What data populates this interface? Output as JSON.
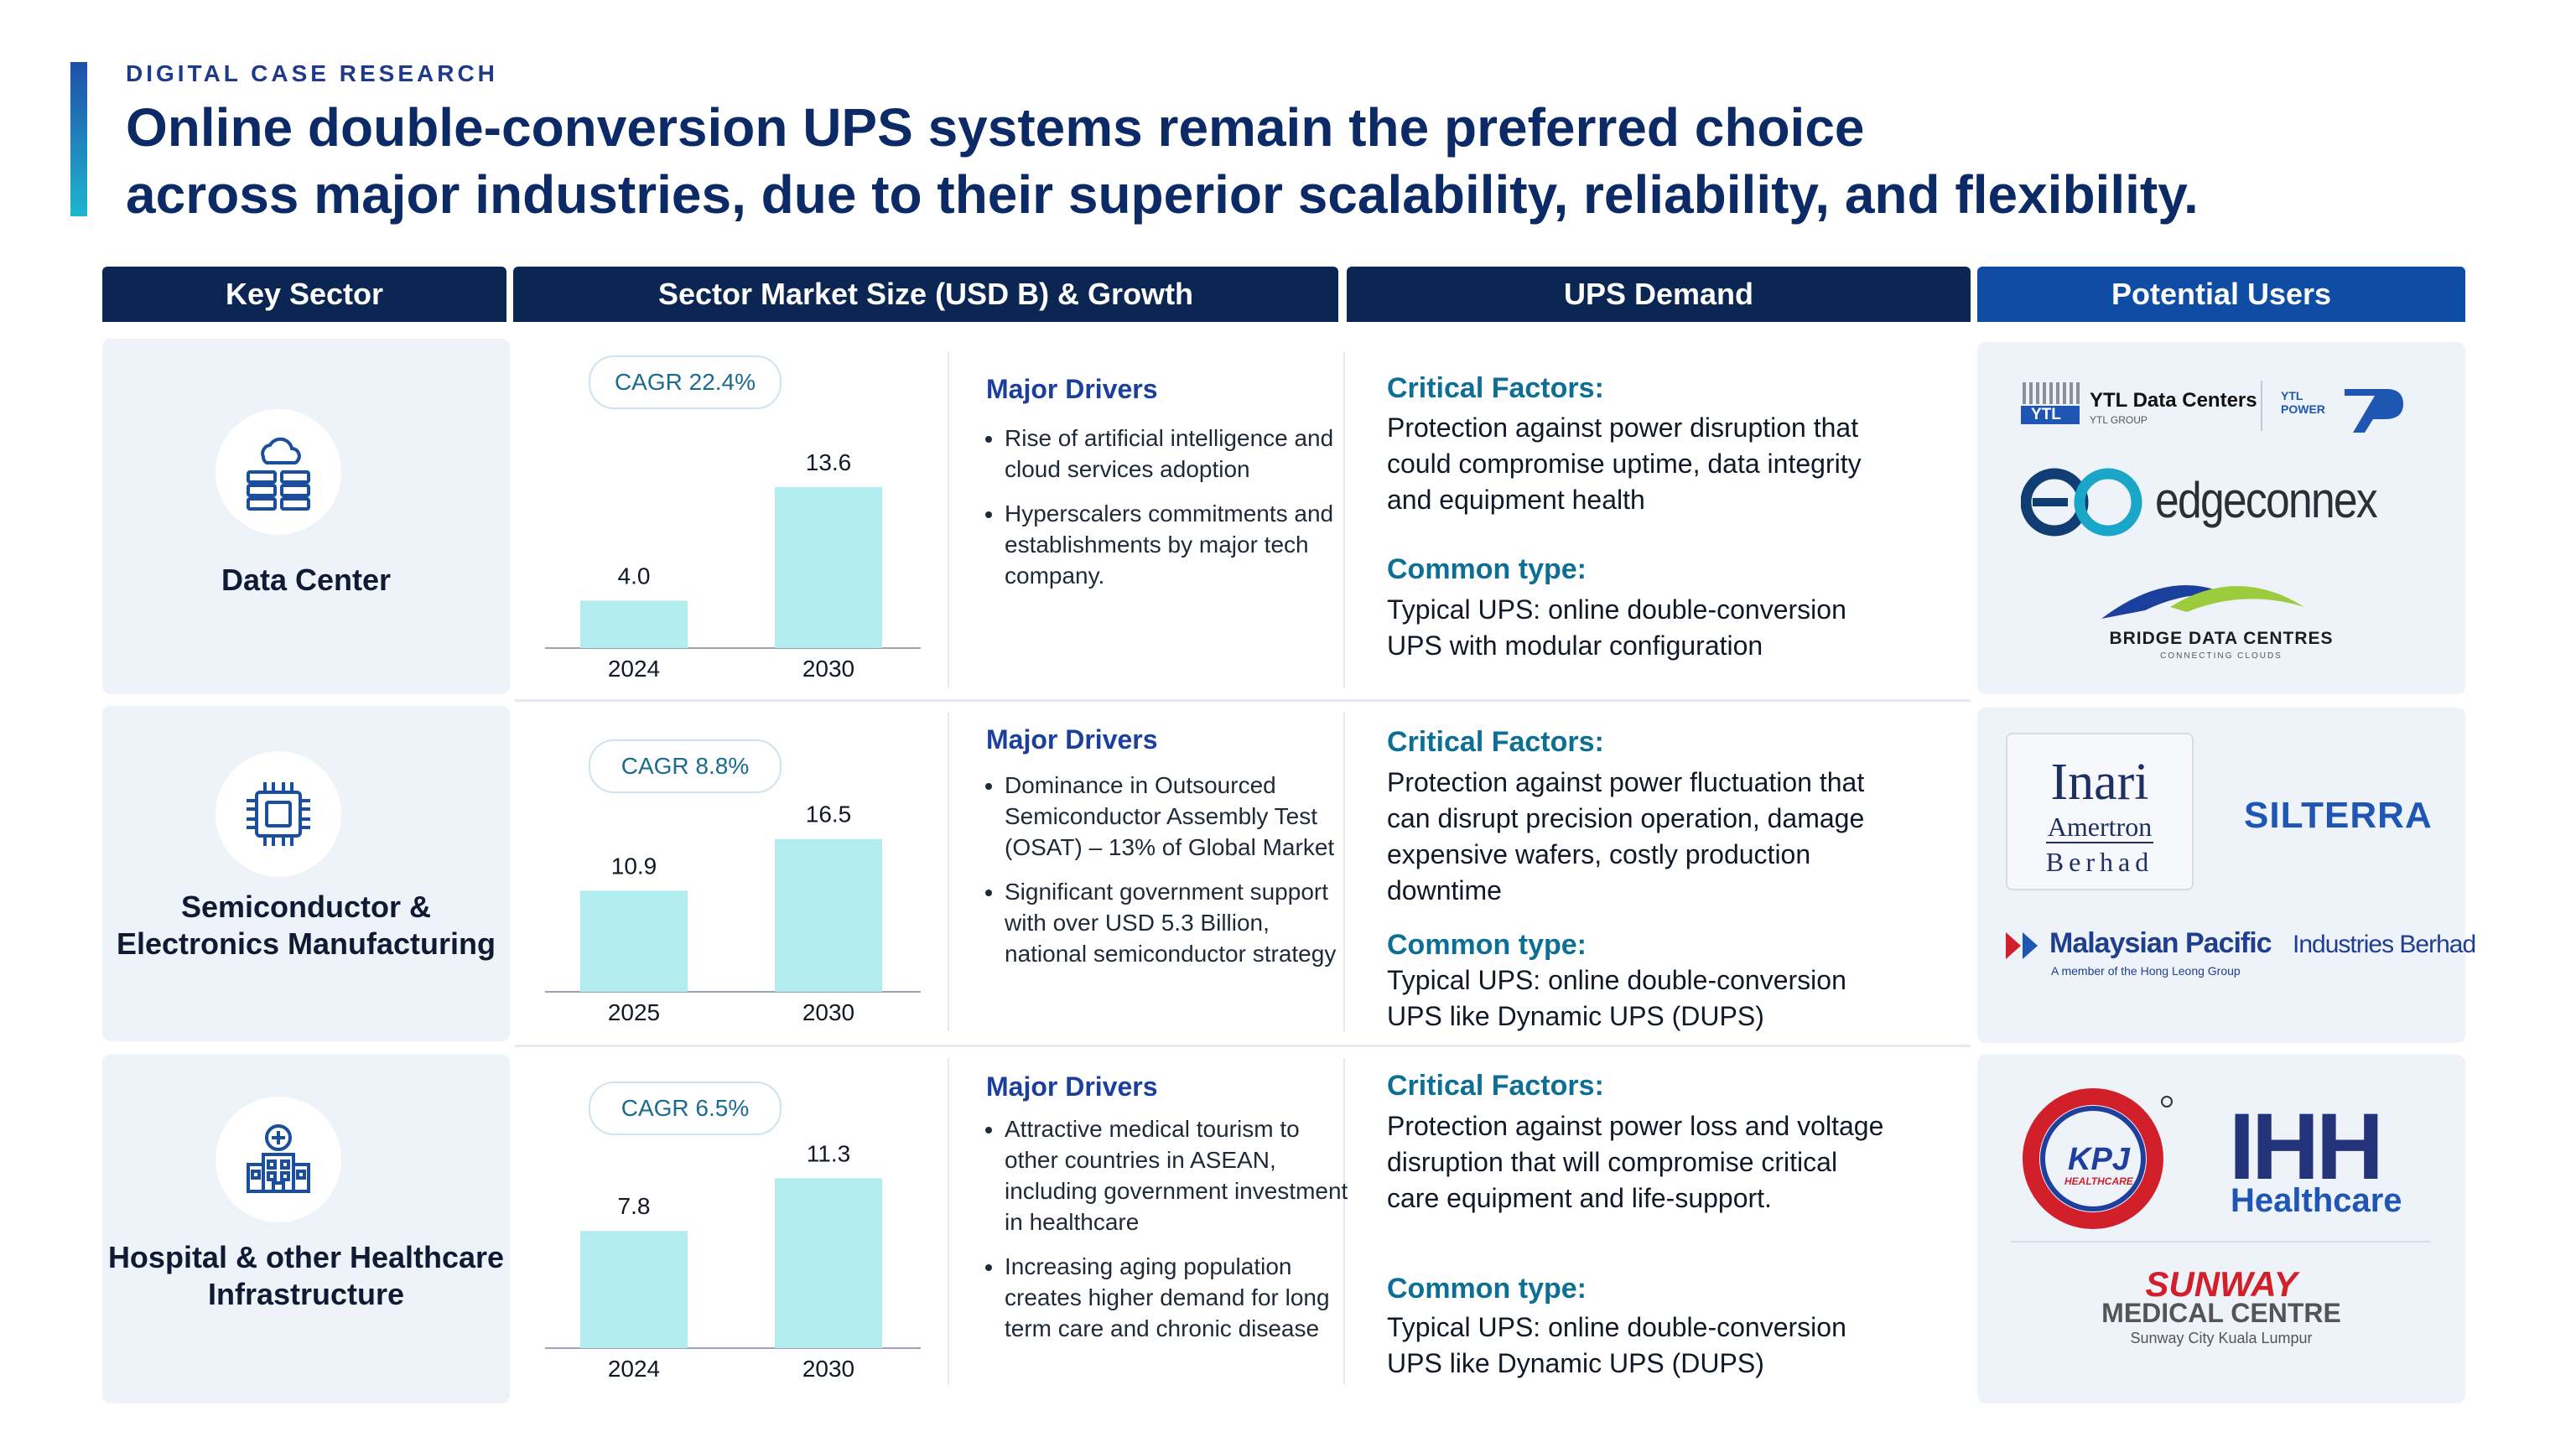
{
  "eyebrow": "DIGITAL CASE RESEARCH",
  "headline": {
    "line1": "Online double-conversion UPS systems remain the preferred choice",
    "line2": "across major industries, due to their superior scalability, reliability, and flexibility."
  },
  "columns": {
    "sector": "Key Sector",
    "market": "Sector Market Size (USD B) & Growth",
    "demand": "UPS Demand",
    "users": "Potential Users"
  },
  "labels": {
    "drivers": "Major Drivers",
    "critical": "Critical Factors:",
    "common": "Common type:"
  },
  "colors": {
    "navy": "#0c2654",
    "blue": "#0f4ca4",
    "bar": "#b3ecef",
    "accent": "#0e6f95"
  },
  "rows": [
    {
      "sector": "Data Center",
      "icon": "cloud-server-icon",
      "cagr": "CAGR 22.4%",
      "chart_data": {
        "type": "bar",
        "categories": [
          "2024",
          "2030"
        ],
        "values": [
          4.0,
          13.6
        ],
        "value_labels": [
          "4.0",
          "13.6"
        ]
      },
      "drivers": [
        "Rise of artificial intelligence and cloud services adoption",
        "Hyperscalers commitments and establishments by major tech company."
      ],
      "critical": "Protection against power disruption that could compromise uptime, data integrity and equipment health",
      "common": "Typical UPS: online double-conversion UPS with modular configuration",
      "users": {
        "ytl_name": "YTL Data Centers",
        "ytl_sub": "YTL GROUP",
        "ytl_logo": "YTL",
        "ytl_power": "YTL POWER",
        "edge": "edgeconnex",
        "bridge": "BRIDGE DATA CENTRES",
        "bridge_tag": "CONNECTING CLOUDS"
      }
    },
    {
      "sector": "Semiconductor & Electronics Manufacturing",
      "icon": "chip-icon",
      "cagr": "CAGR 8.8%",
      "chart_data": {
        "type": "bar",
        "categories": [
          "2025",
          "2030"
        ],
        "values": [
          10.9,
          16.5
        ],
        "value_labels": [
          "10.9",
          "16.5"
        ]
      },
      "drivers": [
        "Dominance in Outsourced Semiconductor Assembly Test (OSAT) – 13% of Global Market",
        "Significant government support with over USD 5.3 Billion, national semiconductor strategy"
      ],
      "critical": "Protection against power fluctuation that can disrupt precision operation, damage expensive wafers, costly production downtime",
      "common": "Typical UPS: online double-conversion UPS like Dynamic UPS (DUPS)",
      "users": {
        "inari1": "Inari",
        "inari2": "Amertron",
        "inari3": "Berhad",
        "silterra": "SILTERRA",
        "mpi_bold": "Malaysian Pacific",
        "mpi_rest": "Industries Berhad",
        "mpi_tag": "A member of the Hong Leong Group"
      }
    },
    {
      "sector": "Hospital & other Healthcare Infrastructure",
      "icon": "hospital-icon",
      "cagr": "CAGR 6.5%",
      "chart_data": {
        "type": "bar",
        "categories": [
          "2024",
          "2030"
        ],
        "values": [
          7.8,
          11.3
        ],
        "value_labels": [
          "7.8",
          "11.3"
        ]
      },
      "drivers": [
        "Attractive medical tourism to other countries in ASEAN, including government investment in healthcare",
        "Increasing aging population creates higher demand for long term care and chronic disease"
      ],
      "critical": "Protection against power loss and voltage disruption that will compromise critical care equipment and life-support.",
      "common": "Typical UPS: online double-conversion UPS like Dynamic UPS (DUPS)",
      "users": {
        "kpj": "KPJ",
        "kpj_sub": "HEALTHCARE",
        "ihh": "IHH",
        "ihh_sub": "Healthcare",
        "sunway": "SUNWAY",
        "sunway_mc": "MEDICAL CENTRE",
        "sunway_loc": "Sunway City Kuala Lumpur"
      }
    }
  ]
}
